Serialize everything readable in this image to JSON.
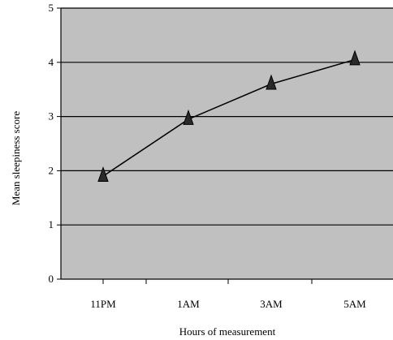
{
  "chart_data": {
    "type": "line",
    "title": "",
    "xlabel": "Hours of measurement",
    "ylabel": "Mean sleepiness score",
    "x_tick_labels": [
      "11PM",
      "1AM",
      "3AM",
      "5AM"
    ],
    "y_tick_labels": [
      "0",
      "1",
      "2",
      "3",
      "4",
      "5"
    ],
    "ylim": [
      0,
      5
    ],
    "grid": true,
    "legend": "none",
    "plot_background": "#c0c0c0",
    "line_color": "#000000",
    "marker": "triangle",
    "series": [
      {
        "x": [
          "11PM",
          "1AM",
          "3AM",
          "5AM"
        ],
        "values": [
          1.9,
          2.95,
          3.6,
          4.05
        ]
      }
    ]
  }
}
